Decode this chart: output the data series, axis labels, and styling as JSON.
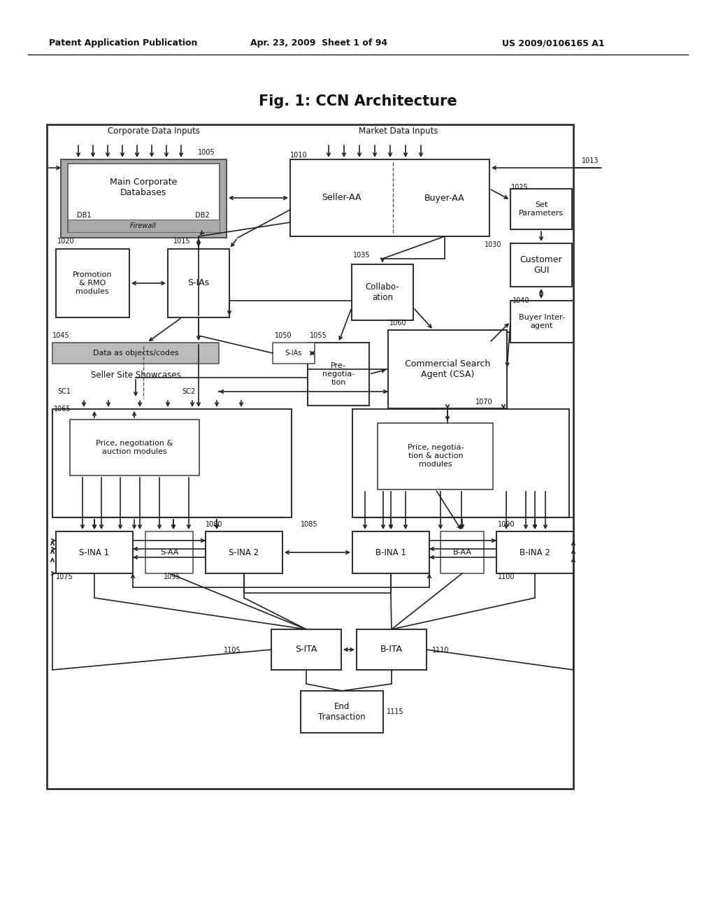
{
  "title": "Fig. 1: CCN Architecture",
  "header_left": "Patent Application Publication",
  "header_center": "Apr. 23, 2009  Sheet 1 of 94",
  "header_right": "US 2009/0106165 A1",
  "bg": "#ffffff"
}
